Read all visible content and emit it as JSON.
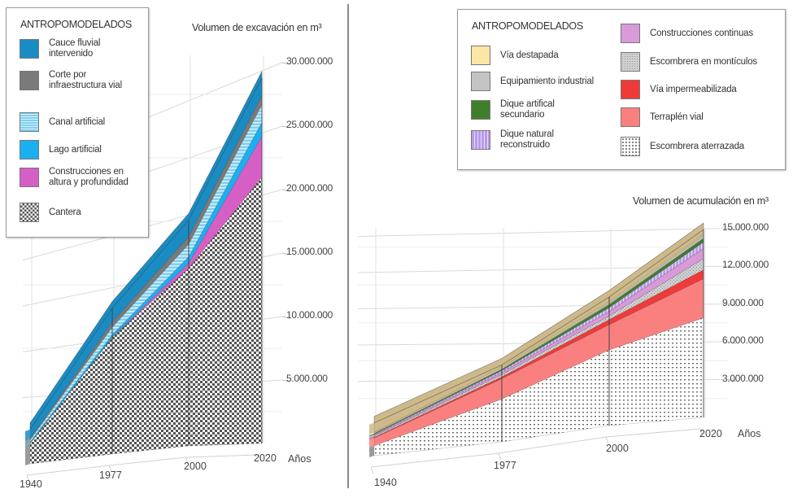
{
  "chart_data": [
    {
      "type": "area",
      "stacked": true,
      "three_d": true,
      "title": "Volumen de excavación en m³",
      "xlabel": "Años",
      "ylabel": "Volumen de excavación en m³",
      "x": [
        "1940",
        "1977",
        "2000",
        "2020"
      ],
      "ylim": [
        0,
        30000000
      ],
      "yticks": [
        "5.000.000",
        "10.000.000",
        "15.000.000",
        "20.000.000",
        "25.000.000",
        "30.000.000"
      ],
      "legend_title": "ANTROPOMODELADOS",
      "legend_position": "top-left",
      "series": [
        {
          "name": "Cantera",
          "lines": [
            "Cantera"
          ],
          "color": "#ffffff",
          "pattern": "checker",
          "values": [
            1600000,
            9200000,
            14000000,
            21000000
          ]
        },
        {
          "name": "Construcciones en altura y profundidad",
          "lines": [
            "Construcciones en",
            "altura y profundidad"
          ],
          "color": "#d65fc6",
          "pattern": "solid",
          "values": [
            0,
            0,
            400000,
            3200000
          ]
        },
        {
          "name": "Lago artificial",
          "lines": [
            "Lago artificial"
          ],
          "color": "#1ab0f0",
          "pattern": "solid",
          "values": [
            100000,
            200000,
            500000,
            1100000
          ]
        },
        {
          "name": "Canal artificial",
          "lines": [
            "Canal artificial"
          ],
          "color": "#7fcff0",
          "pattern": "hstripes",
          "values": [
            200000,
            600000,
            1000000,
            1400000
          ]
        },
        {
          "name": "Corte por infraestructura vial",
          "lines": [
            "Corte por",
            "infraestructura vial"
          ],
          "color": "#7a7a7a",
          "pattern": "solid",
          "values": [
            100000,
            400000,
            600000,
            700000
          ]
        },
        {
          "name": "Cauce fluvial intervenido",
          "lines": [
            "Cauce fluvial",
            "intervenido"
          ],
          "color": "#1a8cc4",
          "pattern": "solid",
          "values": [
            700000,
            1100000,
            1300000,
            1400000
          ]
        }
      ],
      "legend_order": [
        5,
        4,
        3,
        2,
        1,
        0
      ]
    },
    {
      "type": "area",
      "stacked": true,
      "three_d": true,
      "title": "Volumen de acumulación en m³",
      "xlabel": "Años",
      "ylabel": "Volumen de acumulación en m³",
      "x": [
        "1940",
        "1977",
        "2000",
        "2020"
      ],
      "ylim": [
        0,
        15000000
      ],
      "yticks": [
        "3.000.000",
        "6.000.000",
        "9.000.000",
        "12.000.000",
        "15.000.000"
      ],
      "legend_title": "ANTROPOMODELADOS",
      "legend_position": "top-right",
      "series": [
        {
          "name": "Escombrera aterrazada",
          "lines": [
            "Escombrera aterrazada"
          ],
          "color": "#ffffff",
          "pattern": "dots",
          "values": [
            800000,
            3400000,
            6000000,
            7900000
          ]
        },
        {
          "name": "Terraplén vial",
          "lines": [
            "Terraplén vial"
          ],
          "color": "#fa8080",
          "pattern": "solid",
          "values": [
            600000,
            1600000,
            2000000,
            3100000
          ]
        },
        {
          "name": "Vía impermeabilizada",
          "lines": [
            "Vía impermeabilizada"
          ],
          "color": "#f03a3a",
          "pattern": "solid",
          "values": [
            50000,
            150000,
            400000,
            700000
          ]
        },
        {
          "name": "Escombrera en montículos",
          "lines": [
            "Escombrera en montículos"
          ],
          "color": "#c8c8c8",
          "pattern": "speckle",
          "values": [
            100000,
            200000,
            300000,
            900000
          ]
        },
        {
          "name": "Construcciones continuas",
          "lines": [
            "Construcciones continuas"
          ],
          "color": "#d89ad8",
          "pattern": "solid",
          "values": [
            80000,
            150000,
            350000,
            800000
          ]
        },
        {
          "name": "Dique natural reconstruido",
          "lines": [
            "Dique natural",
            "reconstruido"
          ],
          "color": "#b89ae8",
          "pattern": "vstripes",
          "values": [
            60000,
            150000,
            300000,
            500000
          ]
        },
        {
          "name": "Dique artifical secundario",
          "lines": [
            "Dique artifical",
            "secundario"
          ],
          "color": "#3f7f2a",
          "pattern": "solid",
          "values": [
            60000,
            100000,
            250000,
            300000
          ]
        },
        {
          "name": "Equipamiento industrial",
          "lines": [
            "Equipamiento industrial"
          ],
          "color": "#c3c3c3",
          "pattern": "solid",
          "values": [
            30000,
            60000,
            100000,
            200000
          ]
        },
        {
          "name": "Vía destapada",
          "lines": [
            "Vía destapada"
          ],
          "color": "#fbe6a4",
          "pattern": "solid",
          "values": [
            70000,
            100000,
            100000,
            100000
          ]
        },
        {
          "name": "Vía destapada (superficie)",
          "lines": [],
          "color": "#cdb98a",
          "pattern": "solid",
          "values": [
            750000,
            190000,
            400000,
            400000
          ]
        }
      ],
      "legend_columns": [
        [
          8,
          7,
          6,
          5
        ],
        [
          4,
          3,
          2,
          1,
          0
        ]
      ]
    }
  ]
}
